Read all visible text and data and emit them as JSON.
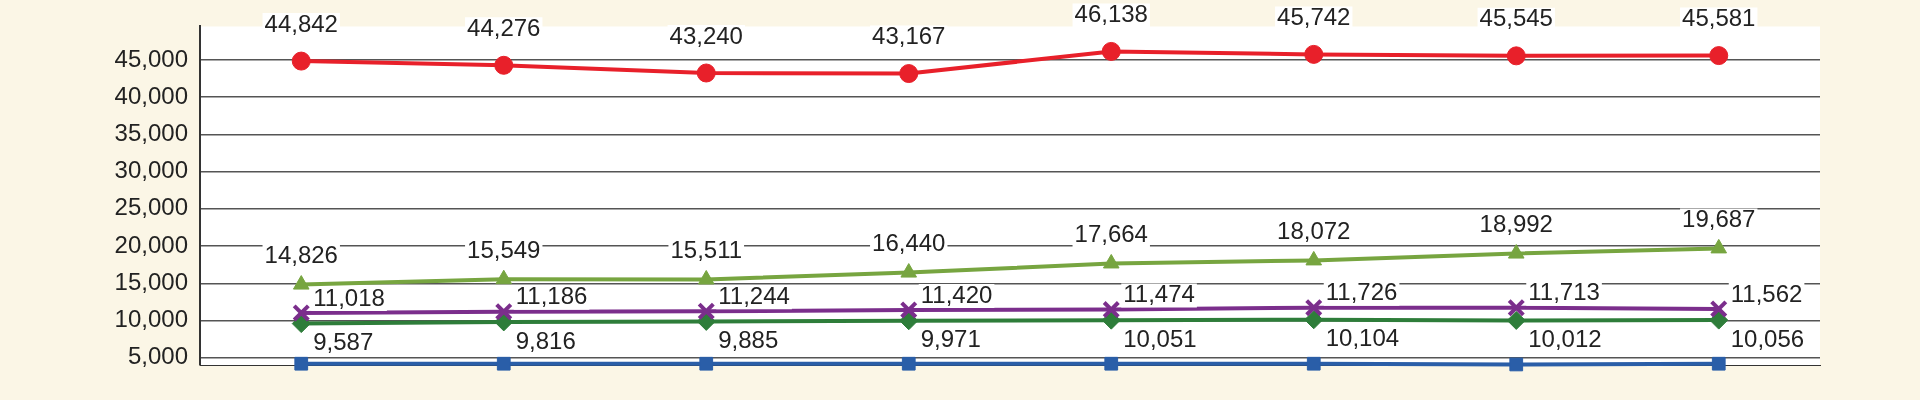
{
  "chart_data": {
    "type": "line",
    "categories": [
      null,
      null,
      null,
      null,
      null,
      null,
      null,
      null
    ],
    "ylim": [
      4000,
      49500
    ],
    "yticks": [
      {
        "value": 5000,
        "label": "5,000"
      },
      {
        "value": 10000,
        "label": "10,000"
      },
      {
        "value": 15000,
        "label": "15,000"
      },
      {
        "value": 20000,
        "label": "20,000"
      },
      {
        "value": 25000,
        "label": "25,000"
      },
      {
        "value": 30000,
        "label": "30,000"
      },
      {
        "value": 35000,
        "label": "35,000"
      },
      {
        "value": 40000,
        "label": "40,000"
      },
      {
        "value": 45000,
        "label": "45,000"
      }
    ],
    "grid": "y",
    "legend": false,
    "series": [
      {
        "color": "#e8202a",
        "marker": "circle",
        "values": [
          44842,
          44276,
          43240,
          43167,
          46138,
          45742,
          45545,
          45581
        ],
        "value_labels": [
          "44,842",
          "44,276",
          "43,240",
          "43,167",
          "46,138",
          "45,742",
          "45,545",
          "45,581"
        ]
      },
      {
        "color": "#77a540",
        "marker": "triangle",
        "values": [
          14826,
          15549,
          15511,
          16440,
          17664,
          18072,
          18992,
          19687
        ],
        "value_labels": [
          "14,826",
          "15,549",
          "15,511",
          "16,440",
          "17,664",
          "18,072",
          "18,992",
          "19,687"
        ]
      },
      {
        "color": "#7b2e8c",
        "marker": "cross",
        "values": [
          11018,
          11186,
          11244,
          11420,
          11474,
          11726,
          11713,
          11562
        ],
        "value_labels": [
          "11,018",
          "11,186",
          "11,244",
          "11,420",
          "11,474",
          "11,726",
          "11,713",
          "11,562"
        ]
      },
      {
        "color": "#2e7d3a",
        "marker": "diamond",
        "values": [
          9587,
          9816,
          9885,
          9971,
          10051,
          10104,
          10012,
          10056
        ],
        "value_labels": [
          "9,587",
          "9,816",
          "9,885",
          "9,971",
          "10,051",
          "10,104",
          "10,012",
          "10,056"
        ]
      },
      {
        "color": "#2a5ea8",
        "marker": "square",
        "values": [
          4200,
          4200,
          4200,
          4200,
          4200,
          4200,
          4100,
          4200
        ]
      }
    ]
  }
}
